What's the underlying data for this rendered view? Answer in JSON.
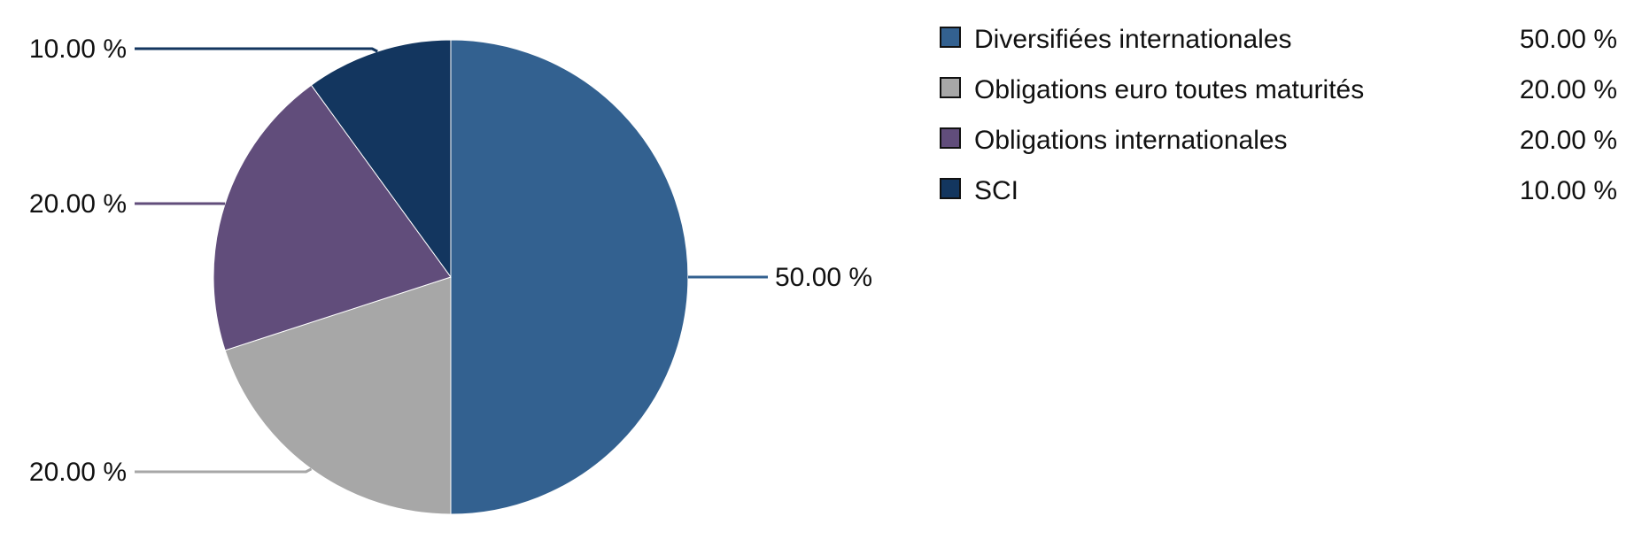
{
  "chart_data": {
    "type": "pie",
    "title": "",
    "series": [
      {
        "name": "Diversifiées internationales",
        "value": 50,
        "label": "50.00 %",
        "color": "#336190"
      },
      {
        "name": "Obligations euro toutes maturités",
        "value": 20,
        "label": "20.00 %",
        "color": "#a7a7a7"
      },
      {
        "name": "Obligations internationales",
        "value": 20,
        "label": "20.00 %",
        "color": "#614d7b"
      },
      {
        "name": "SCI",
        "value": 10,
        "label": "10.00 %",
        "color": "#13365f"
      }
    ],
    "legend": {
      "position": "top-right"
    }
  }
}
